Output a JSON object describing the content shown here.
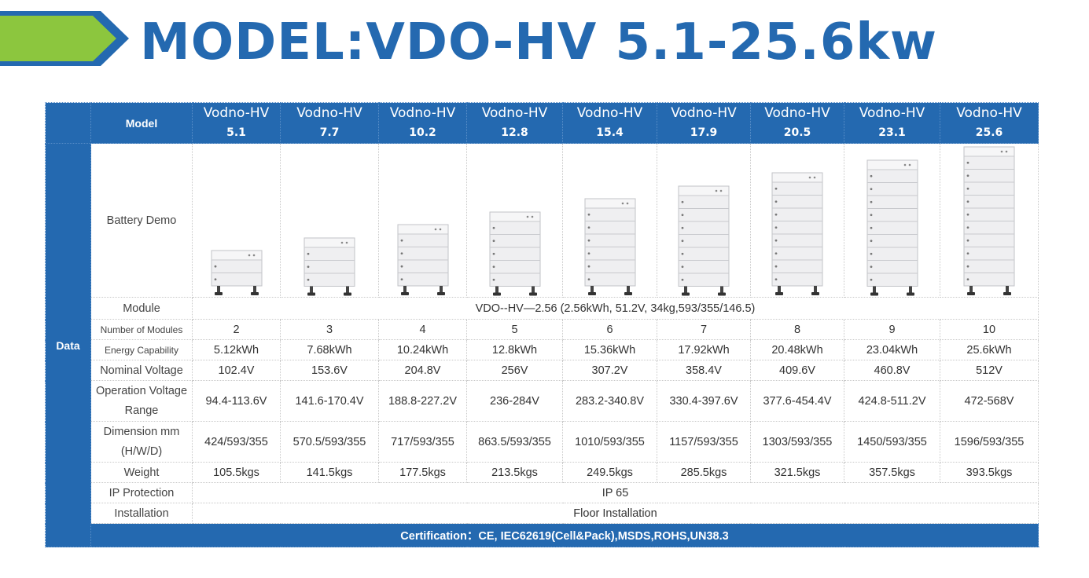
{
  "header": {
    "title": "MODEL:VDO-HV 5.1-25.6kw",
    "banner_colors": {
      "green": "#8cc63e",
      "blue": "#2469b0"
    }
  },
  "table": {
    "model_label": "Model",
    "data_label": "Data",
    "models": [
      {
        "name": "Vodno-HV",
        "number": "5.1"
      },
      {
        "name": "Vodno-HV",
        "number": "7.7"
      },
      {
        "name": "Vodno-HV",
        "number": "10.2"
      },
      {
        "name": "Vodno-HV",
        "number": "12.8"
      },
      {
        "name": "Vodno-HV",
        "number": "15.4"
      },
      {
        "name": "Vodno-HV",
        "number": "17.9"
      },
      {
        "name": "Vodno-HV",
        "number": "20.5"
      },
      {
        "name": "Vodno-HV",
        "number": "23.1"
      },
      {
        "name": "Vodno-HV",
        "number": "25.6"
      }
    ],
    "battery_demo_label": "Battery Demo",
    "module_row": {
      "label": "Module",
      "value": "VDO--HV—2.56 (2.56kWh, 51.2V, 34kg,593/355/146.5)"
    },
    "rows": [
      {
        "label": "Number of Modules",
        "values": [
          "2",
          "3",
          "4",
          "5",
          "6",
          "7",
          "8",
          "9",
          "10"
        ]
      },
      {
        "label": "Energy Capability",
        "values": [
          "5.12kWh",
          "7.68kWh",
          "10.24kWh",
          "12.8kWh",
          "15.36kWh",
          "17.92kWh",
          "20.48kWh",
          "23.04kWh",
          "25.6kWh"
        ]
      },
      {
        "label": "Nominal Voltage",
        "values": [
          "102.4V",
          "153.6V",
          "204.8V",
          "256V",
          "307.2V",
          "358.4V",
          "409.6V",
          "460.8V",
          "512V"
        ]
      },
      {
        "label": "Operation Voltage Range",
        "values": [
          "94.4-113.6V",
          "141.6-170.4V",
          "188.8-227.2V",
          "236-284V",
          "283.2-340.8V",
          "330.4-397.6V",
          "377.6-454.4V",
          "424.8-511.2V",
          "472-568V"
        ]
      },
      {
        "label": "Dimension mm (H/W/D)",
        "values": [
          "424/593/355",
          "570.5/593/355",
          "717/593/355",
          "863.5/593/355",
          "1010/593/355",
          "1157/593/355",
          "1303/593/355",
          "1450/593/355",
          "1596/593/355"
        ]
      },
      {
        "label": "Weight",
        "values": [
          "105.5kgs",
          "141.5kgs",
          "177.5kgs",
          "213.5kgs",
          "249.5kgs",
          "285.5kgs",
          "321.5kgs",
          "357.5kgs",
          "393.5kgs"
        ]
      }
    ],
    "ip_row": {
      "label": "IP Protection",
      "value": "IP 65"
    },
    "installation_row": {
      "label": "Installation",
      "value": "Floor Installation"
    },
    "certification": "Certification：CE, IEC62619(Cell&Pack),MSDS,ROHS,UN38.3"
  }
}
